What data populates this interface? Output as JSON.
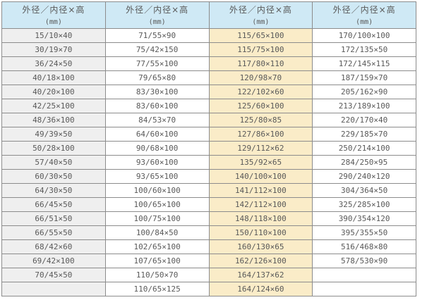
{
  "header": {
    "title": "外径／内径×高",
    "unit": "(mm)"
  },
  "colors": {
    "header_bg": "#cfe9f5",
    "col1_bg": "#efefef",
    "col3_bg": "#faecc8",
    "border": "#8c8c8c",
    "text": "#595959"
  },
  "rows": [
    [
      "15/10×40",
      "71/55×90",
      "115/65×100",
      "170/100×100"
    ],
    [
      "30/19×70",
      "75/42×150",
      "115/75×100",
      "172/135×50"
    ],
    [
      "36/24×50",
      "77/55×100",
      "117/80×110",
      "172/145×115"
    ],
    [
      "40/18×100",
      "79/65×80",
      "120/98×70",
      "187/159×70"
    ],
    [
      "40/20×100",
      "83/30×100",
      "122/102×60",
      "205/162×90"
    ],
    [
      "42/25×100",
      "83/60×100",
      "125/60×100",
      "213/189×100"
    ],
    [
      "48/36×100",
      "84/53×70",
      "125/80×85",
      "220/170×40"
    ],
    [
      "49/39×50",
      "64/60×100",
      "127/86×100",
      "229/185×70"
    ],
    [
      "50/28×100",
      "90/68×100",
      "129/112×62",
      "250/214×100"
    ],
    [
      "57/40×50",
      "93/60×100",
      "135/92×65",
      "284/250×95"
    ],
    [
      "60/30×50",
      "93/65×100",
      "140/100×100",
      "290/240×120"
    ],
    [
      "64/30×50",
      "100/60×100",
      "141/112×100",
      "304/364×50"
    ],
    [
      "66/45×50",
      "100/65×100",
      "142/112×100",
      "325/285×100"
    ],
    [
      "66/51×50",
      "100/75×100",
      "148/118×100",
      "390/354×120"
    ],
    [
      "66/55×50",
      "100/84×50",
      "150/110×100",
      "395/355×50"
    ],
    [
      "68/42×60",
      "102/65×100",
      "160/130×65",
      "516/468×80"
    ],
    [
      "69/42×100",
      "107/65×100",
      "162/126×100",
      "578/530×90"
    ],
    [
      "70/45×50",
      "110/50×70",
      "164/137×62",
      ""
    ],
    [
      "",
      "110/65×125",
      "164/124×60",
      ""
    ]
  ]
}
